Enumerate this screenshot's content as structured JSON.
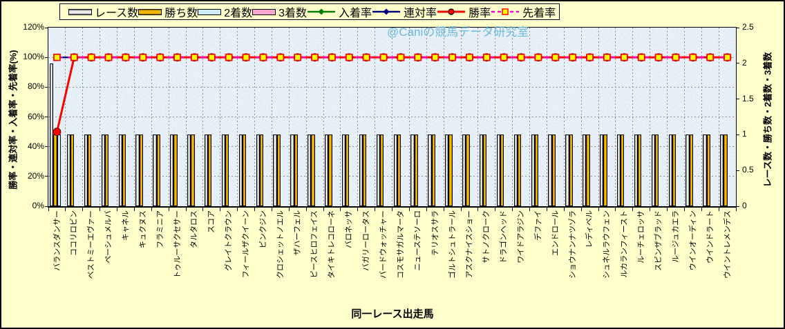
{
  "chart_data": {
    "type": "bar",
    "subtype": "combo-bar-line-dual-axis",
    "watermark": "@Caniの競馬データ研究室",
    "grid": true,
    "legend_position": "top",
    "axes": {
      "left": {
        "title": "勝率・連対率・入着率・先着率(%)",
        "min": 0,
        "max": 120,
        "ticks": [
          "0%",
          "20%",
          "40%",
          "60%",
          "80%",
          "100%",
          "120%"
        ]
      },
      "right": {
        "title": "レース数・勝ち数・2着数・3着数",
        "min": 0,
        "max": 2.5,
        "ticks": [
          "0",
          "0.5",
          "1",
          "1.5",
          "2",
          "2.5"
        ]
      },
      "x": {
        "title": "同一レース出走馬"
      }
    },
    "categories": [
      "バランスダンサー",
      "ココリロビン",
      "ベストミーエヴァー",
      "ペーシュメルバ",
      "キャネル",
      "キュクヌス",
      "フラミニア",
      "トゥルーサクセサー",
      "タルタロス",
      "スコア",
      "グレイトクラウン",
      "フィールザクイーン",
      "ピンクジン",
      "クロシェットノエル",
      "ザハーフェル",
      "ピースヒロフェイス",
      "タイキトレコローネ",
      "バロネッサ",
      "バガリーロータス",
      "バードウォッチャー",
      "コスモサガルマータ",
      "ニューステソーロ",
      "テリオスサラ",
      "ゴルトシュトラール",
      "アスクナイスショー",
      "サトノクローク",
      "ドラゴンヘッド",
      "ワイドアラジン",
      "デファイ",
      "エンドロール",
      "ショウナンナツゾラ",
      "レディベル",
      "シュネルラウフェン",
      "ルカランフィースト",
      "ルーチェロッサ",
      "スピンザブラッド",
      "ルージュカエラ",
      "ウインオーディン",
      "ウインドラート",
      "ウイントレメンデス"
    ],
    "series": [
      {
        "id": "races",
        "label": "レース数",
        "kind": "bar",
        "axis": "right",
        "color": "#FFFFFF",
        "edge": "#7A7A7A",
        "values": [
          2,
          1,
          1,
          1,
          1,
          1,
          1,
          1,
          1,
          1,
          1,
          1,
          1,
          1,
          1,
          1,
          1,
          1,
          1,
          1,
          1,
          1,
          1,
          1,
          1,
          1,
          1,
          1,
          1,
          1,
          1,
          1,
          1,
          1,
          1,
          1,
          1,
          1,
          1,
          1
        ]
      },
      {
        "id": "wins",
        "label": "勝ち数",
        "kind": "bar",
        "axis": "right",
        "color": "#FFC000",
        "edge": "#A87800",
        "values": [
          1,
          1,
          1,
          1,
          1,
          1,
          1,
          1,
          1,
          1,
          1,
          1,
          1,
          1,
          1,
          1,
          1,
          1,
          1,
          1,
          1,
          1,
          1,
          1,
          1,
          1,
          1,
          1,
          1,
          1,
          1,
          1,
          1,
          1,
          1,
          1,
          1,
          1,
          1,
          1
        ]
      },
      {
        "id": "seconds",
        "label": "2着数",
        "kind": "bar",
        "axis": "right",
        "color": "#CDEBF7",
        "values": [
          1,
          0,
          0,
          0,
          0,
          0,
          0,
          0,
          0,
          0,
          0,
          0,
          0,
          0,
          0,
          0,
          0,
          0,
          0,
          0,
          0,
          0,
          0,
          0,
          0,
          0,
          0,
          0,
          0,
          0,
          0,
          0,
          0,
          0,
          0,
          0,
          0,
          0,
          0,
          0
        ]
      },
      {
        "id": "thirds",
        "label": "3着数",
        "kind": "bar",
        "axis": "right",
        "color": "#F8A8D0",
        "values": [
          0,
          0,
          0,
          0,
          0,
          0,
          0,
          0,
          0,
          0,
          0,
          0,
          0,
          0,
          0,
          0,
          0,
          0,
          0,
          0,
          0,
          0,
          0,
          0,
          0,
          0,
          0,
          0,
          0,
          0,
          0,
          0,
          0,
          0,
          0,
          0,
          0,
          0,
          0,
          0
        ]
      },
      {
        "id": "in3-rate",
        "label": "入着率",
        "kind": "line",
        "axis": "left",
        "color": "#008000",
        "marker": "diamond",
        "values": [
          100,
          100,
          100,
          100,
          100,
          100,
          100,
          100,
          100,
          100,
          100,
          100,
          100,
          100,
          100,
          100,
          100,
          100,
          100,
          100,
          100,
          100,
          100,
          100,
          100,
          100,
          100,
          100,
          100,
          100,
          100,
          100,
          100,
          100,
          100,
          100,
          100,
          100,
          100,
          100
        ]
      },
      {
        "id": "in2-rate",
        "label": "連対率",
        "kind": "line",
        "axis": "left",
        "color": "#000080",
        "marker": "diamond",
        "values": [
          100,
          100,
          100,
          100,
          100,
          100,
          100,
          100,
          100,
          100,
          100,
          100,
          100,
          100,
          100,
          100,
          100,
          100,
          100,
          100,
          100,
          100,
          100,
          100,
          100,
          100,
          100,
          100,
          100,
          100,
          100,
          100,
          100,
          100,
          100,
          100,
          100,
          100,
          100,
          100
        ]
      },
      {
        "id": "win-rate",
        "label": "勝率",
        "kind": "line",
        "axis": "left",
        "color": "#FF0000",
        "marker": "circle",
        "values": [
          50,
          100,
          100,
          100,
          100,
          100,
          100,
          100,
          100,
          100,
          100,
          100,
          100,
          100,
          100,
          100,
          100,
          100,
          100,
          100,
          100,
          100,
          100,
          100,
          100,
          100,
          100,
          100,
          100,
          100,
          100,
          100,
          100,
          100,
          100,
          100,
          100,
          100,
          100,
          100
        ]
      },
      {
        "id": "first-rate",
        "label": "先着率",
        "kind": "line-dashed",
        "axis": "left",
        "color": "#FF00CC",
        "marker": "square",
        "marker_fill": "#FFFF00",
        "marker_edge": "#FF0000",
        "values": [
          100,
          100,
          100,
          100,
          100,
          100,
          100,
          100,
          100,
          100,
          100,
          100,
          100,
          100,
          100,
          100,
          100,
          100,
          100,
          100,
          100,
          100,
          100,
          100,
          100,
          100,
          100,
          100,
          100,
          100,
          100,
          100,
          100,
          100,
          100,
          100,
          100,
          100,
          100,
          100
        ]
      }
    ]
  }
}
